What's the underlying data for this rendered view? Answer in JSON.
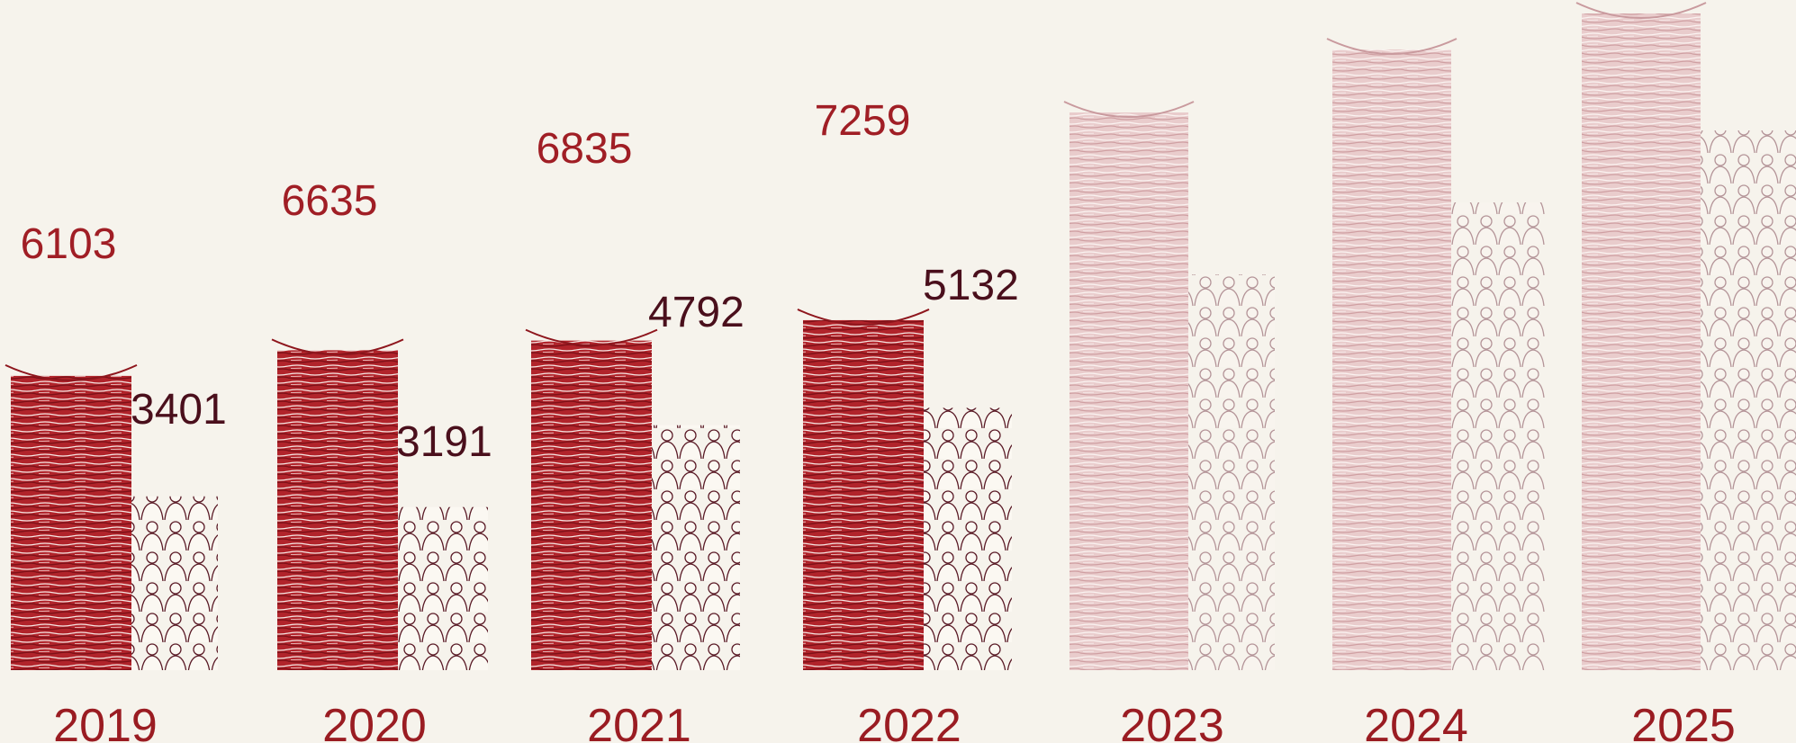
{
  "chart_data": {
    "type": "bar",
    "categories": [
      "2019",
      "2020",
      "2021",
      "2022",
      "2023",
      "2024",
      "2025"
    ],
    "series": [
      {
        "values": [
          6103,
          6635,
          6835,
          7259,
          null,
          null,
          null
        ]
      },
      {
        "values": [
          3401,
          3191,
          4792,
          5132,
          null,
          null,
          null
        ]
      }
    ],
    "value_labels": {
      "stacks": [
        "6103",
        "6635",
        "6835",
        "7259"
      ],
      "crowds": [
        "3401",
        "3191",
        "4792",
        "5132"
      ]
    },
    "grid": false,
    "legend": "none",
    "colors": {
      "background": "#f6f3ec",
      "stack": "#b1242b",
      "stack_light": "#e8c9c9",
      "crowd": "#5a1a26",
      "crowd_light": "#b49498",
      "year_label": "#9a1c22",
      "stack_label": "#a01e25",
      "crowd_label": "#4a0f1c"
    },
    "icons": [
      "paper-stack-icon",
      "crowd-icon"
    ]
  }
}
